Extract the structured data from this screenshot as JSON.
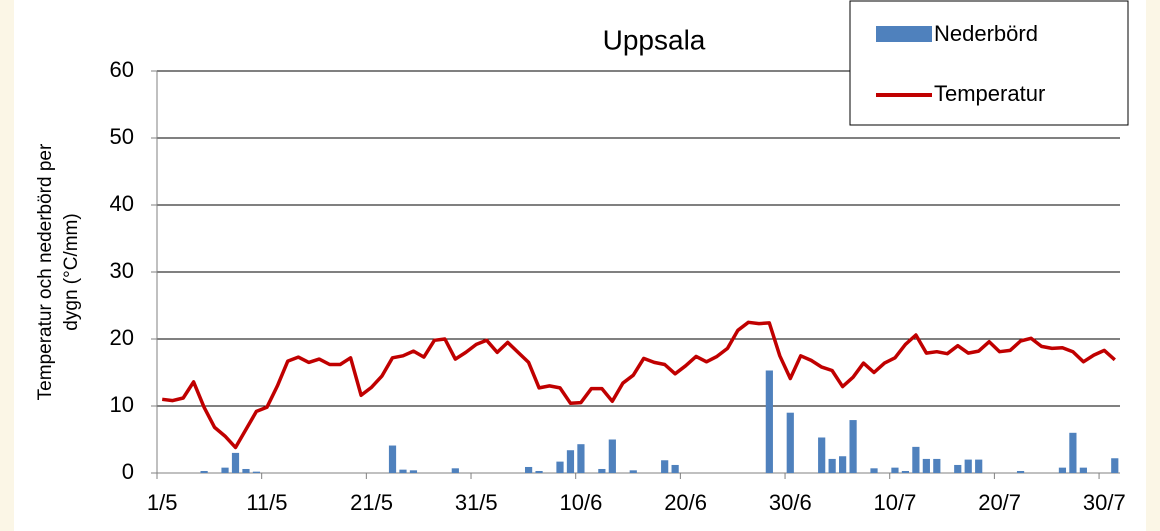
{
  "chart_data": {
    "type": "bar-line",
    "title": "Uppsala",
    "y_label": [
      "Temperatur och nederbörd per",
      "dygn (°C/mm)"
    ],
    "categories": [
      "1/5",
      null,
      null,
      null,
      null,
      null,
      null,
      null,
      null,
      null,
      "11/5",
      null,
      null,
      null,
      null,
      null,
      null,
      null,
      null,
      null,
      "21/5",
      null,
      null,
      null,
      null,
      null,
      null,
      null,
      null,
      null,
      "31/5",
      null,
      null,
      null,
      null,
      null,
      null,
      null,
      null,
      null,
      "10/6",
      null,
      null,
      null,
      null,
      null,
      null,
      null,
      null,
      null,
      "20/6",
      null,
      null,
      null,
      null,
      null,
      null,
      null,
      null,
      null,
      "30/6",
      null,
      null,
      null,
      null,
      null,
      null,
      null,
      null,
      null,
      "10/7",
      null,
      null,
      null,
      null,
      null,
      null,
      null,
      null,
      null,
      "20/7",
      null,
      null,
      null,
      null,
      null,
      null,
      null,
      null,
      null,
      "30/7",
      null
    ],
    "series": [
      {
        "name": "Nederbörd",
        "type": "bar",
        "color": "#4f81bd",
        "values": [
          0,
          0,
          0,
          0,
          0.3,
          0,
          0.8,
          3,
          0.6,
          0.2,
          0,
          0,
          0,
          0,
          0,
          0,
          0,
          0,
          0,
          0,
          0,
          0,
          4.1,
          0.5,
          0.4,
          0,
          0,
          0,
          0.7,
          0,
          0,
          0,
          0,
          0,
          0,
          0.9,
          0.3,
          0,
          1.7,
          3.4,
          4.3,
          0,
          0.6,
          5,
          0,
          0.4,
          0,
          0,
          1.9,
          1.2,
          0,
          0,
          0,
          0,
          0,
          0,
          0,
          0,
          15.3,
          0,
          9,
          0,
          0,
          5.3,
          2.1,
          2.5,
          7.9,
          0,
          0.7,
          0,
          0.8,
          0.3,
          3.9,
          2.1,
          2.1,
          0,
          1.2,
          2,
          2,
          0,
          0,
          0,
          0.3,
          0,
          0,
          0,
          0.8,
          6,
          0.8,
          0,
          0,
          2.2
        ]
      },
      {
        "name": "Temperatur",
        "type": "line",
        "color": "#c00000",
        "values": [
          11,
          10.8,
          11.2,
          13.6,
          9.8,
          6.8,
          5.5,
          3.8,
          6.5,
          9.2,
          9.8,
          13,
          16.7,
          17.3,
          16.5,
          17,
          16.2,
          16.2,
          17.2,
          11.6,
          12.8,
          14.5,
          17.2,
          17.5,
          18.2,
          17.3,
          19.8,
          20,
          17,
          18,
          19.2,
          19.8,
          18,
          19.5,
          18,
          16.5,
          12.7,
          13,
          12.7,
          10.4,
          10.5,
          12.6,
          12.6,
          10.7,
          13.4,
          14.6,
          17.1,
          16.5,
          16.2,
          14.8,
          16,
          17.4,
          16.6,
          17.4,
          18.6,
          21.3,
          22.5,
          22.3,
          22.4,
          17.5,
          14.1,
          17.5,
          16.8,
          15.8,
          15.3,
          12.9,
          14.3,
          16.4,
          15,
          16.4,
          17.2,
          19.2,
          20.6,
          17.9,
          18.1,
          17.8,
          19,
          17.9,
          18.2,
          19.6,
          18.1,
          18.3,
          19.7,
          20.1,
          18.9,
          18.6,
          18.7,
          18.1,
          16.6,
          17.6,
          18.3,
          16.9
        ]
      }
    ],
    "ylim": [
      0,
      60
    ],
    "yticks": [
      0,
      10,
      20,
      30,
      40,
      50,
      60
    ],
    "grid": true,
    "legend": "upper right"
  }
}
